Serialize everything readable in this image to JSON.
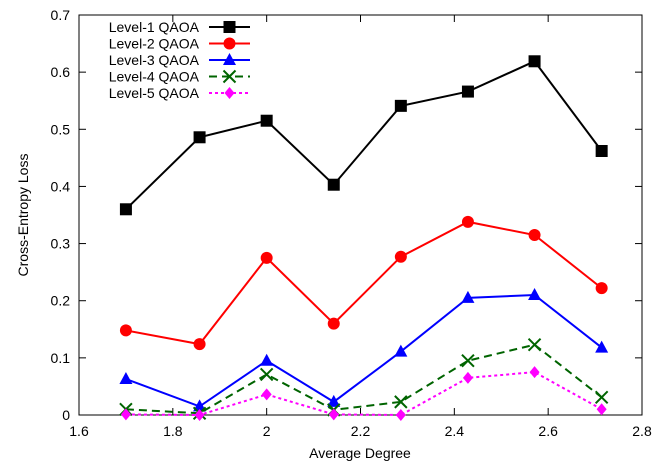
{
  "chart_data": {
    "type": "line",
    "xlabel": "Average Degree",
    "ylabel": "Cross-Entropy Loss",
    "xlim": [
      1.6,
      2.8
    ],
    "ylim": [
      0,
      0.7
    ],
    "xticks": [
      "1.6",
      "1.8",
      "2",
      "2.2",
      "2.4",
      "2.6",
      "2.8"
    ],
    "yticks": [
      "0",
      "0.1",
      "0.2",
      "0.3",
      "0.4",
      "0.5",
      "0.6",
      "0.7"
    ],
    "grid": false,
    "legend_position": "top-left",
    "x": [
      1.7,
      1.857,
      2.0,
      2.143,
      2.286,
      2.429,
      2.571,
      2.714
    ],
    "series": [
      {
        "name": "Level-1 QAOA",
        "color": "#000000",
        "marker": "square",
        "dash": "solid",
        "values": [
          0.36,
          0.486,
          0.515,
          0.403,
          0.541,
          0.566,
          0.619,
          0.462
        ]
      },
      {
        "name": "Level-2 QAOA",
        "color": "#ff0000",
        "marker": "circle",
        "dash": "solid",
        "values": [
          0.148,
          0.124,
          0.275,
          0.16,
          0.277,
          0.338,
          0.315,
          0.222
        ]
      },
      {
        "name": "Level-3 QAOA",
        "color": "#0000ff",
        "marker": "triangle",
        "dash": "solid",
        "values": [
          0.063,
          0.015,
          0.095,
          0.023,
          0.111,
          0.205,
          0.21,
          0.118
        ]
      },
      {
        "name": "Level-4 QAOA",
        "color": "#006400",
        "marker": "x",
        "dash": "dashed",
        "values": [
          0.01,
          0.003,
          0.071,
          0.009,
          0.023,
          0.095,
          0.123,
          0.031
        ]
      },
      {
        "name": "Level-5 QAOA",
        "color": "#ff00ff",
        "marker": "diamond",
        "dash": "dotted",
        "values": [
          0.001,
          0.0,
          0.036,
          0.001,
          0.0,
          0.065,
          0.075,
          0.01
        ]
      }
    ]
  }
}
